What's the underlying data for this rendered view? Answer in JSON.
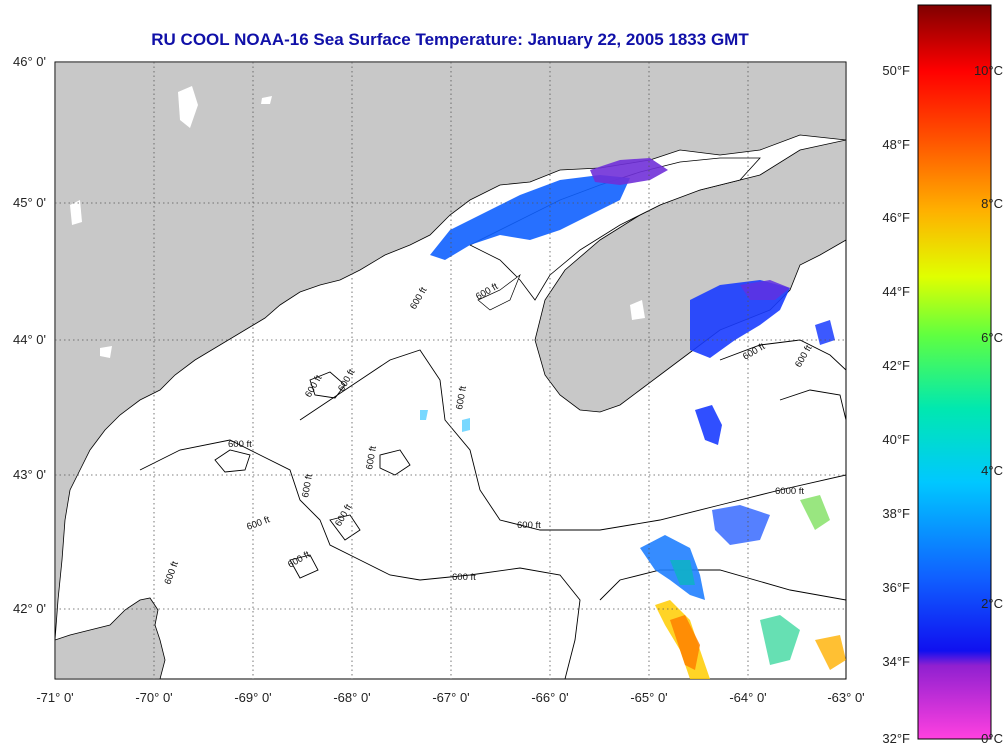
{
  "title": "RU COOL  NOAA-16  Sea Surface Temperature:  January 22, 2005 1833 GMT",
  "axes": {
    "lon_labels": [
      "-71° 0'",
      "-70° 0'",
      "-69° 0'",
      "-68° 0'",
      "-67° 0'",
      "-66° 0'",
      "-65° 0'",
      "-64° 0'",
      "-63° 0'"
    ],
    "lat_labels": [
      "46° 0'",
      "45° 0'",
      "44° 0'",
      "43° 0'",
      "42° 0'"
    ]
  },
  "contours": {
    "labels": [
      "600 ft",
      "600 ft",
      "600 ft",
      "600 ft",
      "600 ft",
      "600 ft",
      "600 ft",
      "600 ft",
      "600 ft",
      "600 ft",
      "600 ft",
      "600 ft",
      "600 ft",
      "600 ft",
      "600 ft",
      "600 ft",
      "6000 ft"
    ]
  },
  "colorbar": {
    "fahrenheit": [
      "50°F",
      "48°F",
      "46°F",
      "44°F",
      "42°F",
      "40°F",
      "38°F",
      "36°F",
      "34°F",
      "32°F"
    ],
    "celsius": [
      "10°C",
      "8°C",
      "6°C",
      "4°C",
      "2°C",
      "0°C"
    ]
  },
  "colors": {
    "land": "#c8c8c8",
    "ocean": "#ffffff",
    "title": "#1010a8",
    "coast": "#000000"
  }
}
